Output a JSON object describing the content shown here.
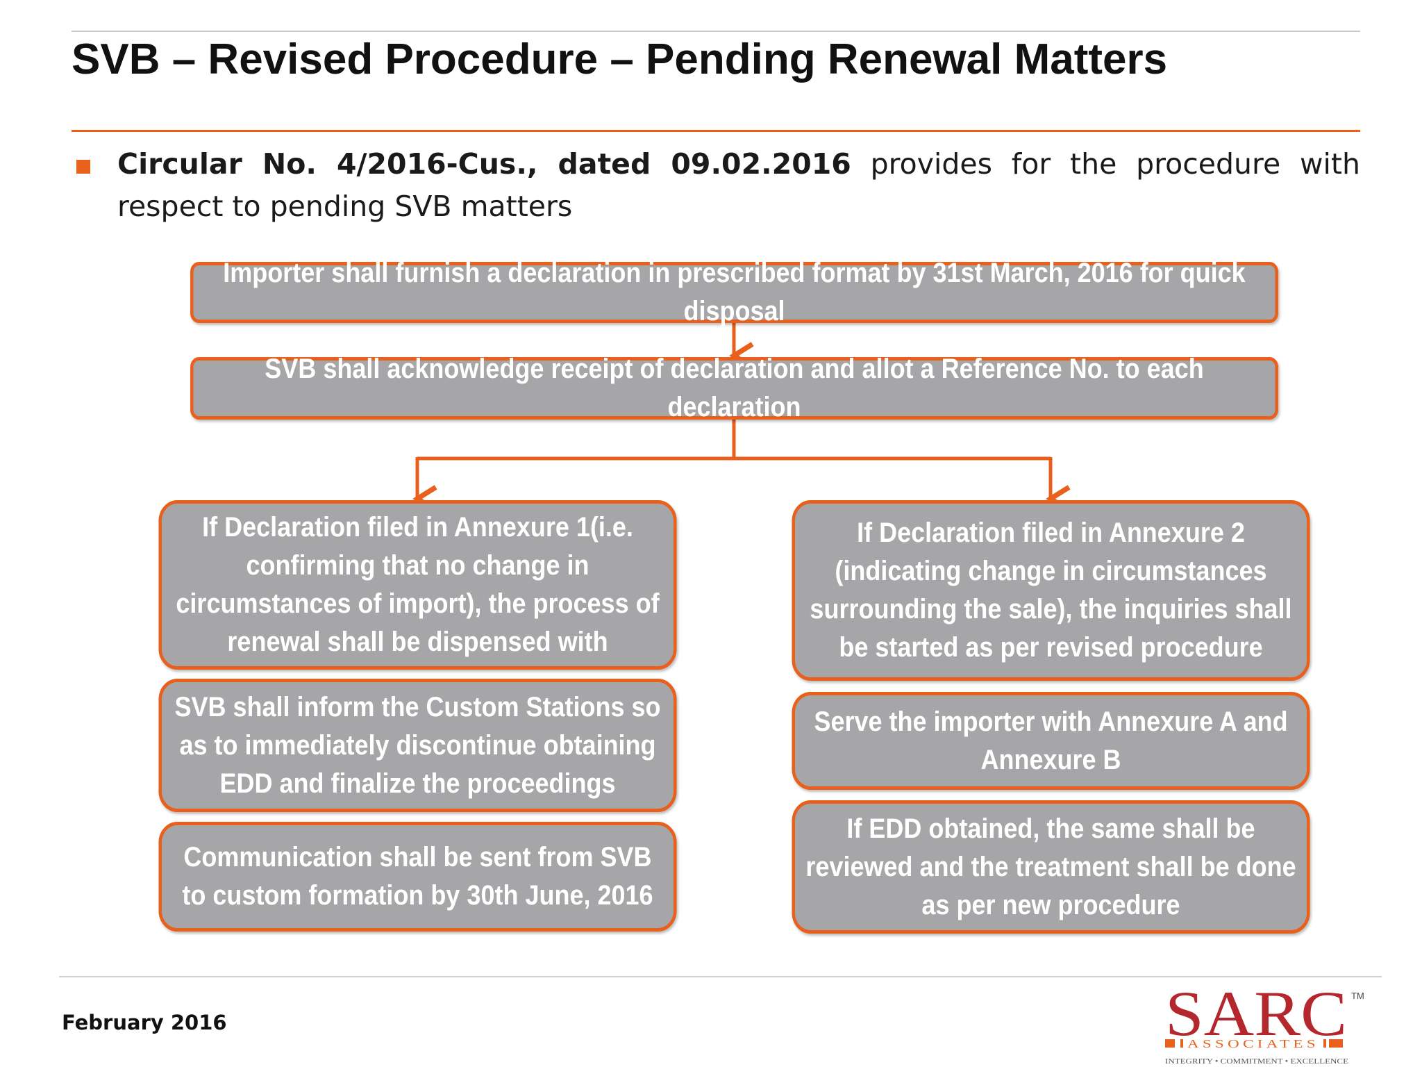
{
  "slide": {
    "title": "SVB – Revised Procedure – Pending Renewal Matters",
    "bullet": {
      "bold": "Circular No. 4/2016-Cus., dated 09.02.2016",
      "rest": " provides for the procedure with respect to pending SVB matters"
    },
    "flow": {
      "step1": "Importer shall furnish a declaration in prescribed format by 31st March, 2016 for quick disposal",
      "step2": "SVB shall acknowledge receipt of declaration and allot a Reference No. to each declaration",
      "left": [
        "If Declaration filed in Annexure 1(i.e. confirming that no change in circumstances of import), the process of renewal shall be dispensed with",
        "SVB shall inform the Custom Stations so as to immediately discontinue obtaining EDD and finalize the proceedings",
        "Communication shall be sent from SVB to custom formation by 30th June, 2016"
      ],
      "right": [
        "If Declaration filed in Annexure 2 (indicating change in circumstances surrounding the sale), the inquiries shall be started as per revised procedure",
        "Serve the importer with Annexure A and Annexure B",
        "If EDD obtained, the same shall be reviewed and the treatment shall be done as per new procedure"
      ]
    },
    "footer": {
      "date": "February 2016",
      "logo_name": "SARC",
      "logo_sub": "ASSOCIATES",
      "logo_tagline": "INTEGRITY • COMMITMENT • EXCELLENCE",
      "logo_tm": "TM"
    },
    "colors": {
      "accent": "#e8601c",
      "box_fill": "#a6a6a8",
      "logo_red": "#b3272d"
    }
  }
}
